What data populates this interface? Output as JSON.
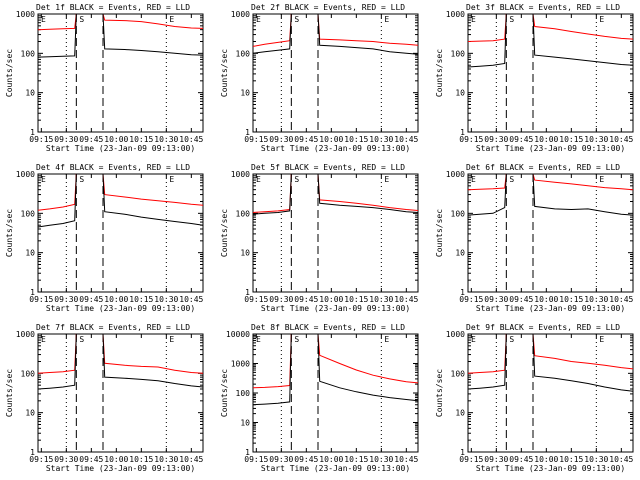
{
  "chart_data": [
    {
      "type": "line",
      "title": "Det 1f BLACK = Events, RED = LLD",
      "xlabel": "Start Time (23-Jan-09 09:13:00)",
      "ylabel": "Counts/sec",
      "xlim": [
        "09:13",
        "10:52"
      ],
      "ylim": [
        1,
        1000
      ],
      "yscale": "log",
      "x_ticks": [
        "09:15",
        "09:30",
        "09:45",
        "10:00",
        "10:15",
        "10:30",
        "10:45"
      ],
      "y_ticks": [
        "1",
        "10",
        "100",
        "1000"
      ],
      "event_labels": [
        "E",
        "S",
        "E"
      ],
      "event_lines": {
        "dotted": [
          "09:30",
          "10:30"
        ],
        "dashed": [
          "09:36",
          "09:52"
        ]
      },
      "series": [
        {
          "color": "#000000",
          "x": [
            "09:13",
            "09:20",
            "09:28",
            "09:35",
            "09:36",
            "09:52",
            "09:53",
            "10:05",
            "10:15",
            "10:25",
            "10:35",
            "10:45",
            "10:52"
          ],
          "y": [
            80,
            82,
            84,
            86,
            1000,
            1000,
            130,
            125,
            118,
            110,
            100,
            92,
            90
          ]
        },
        {
          "color": "#ff0000",
          "x": [
            "09:13",
            "09:20",
            "09:28",
            "09:35",
            "09:36",
            "09:52",
            "09:53",
            "10:05",
            "10:15",
            "10:25",
            "10:35",
            "10:45",
            "10:52"
          ],
          "y": [
            400,
            410,
            420,
            430,
            1000,
            1000,
            700,
            680,
            640,
            560,
            480,
            440,
            430
          ]
        }
      ]
    },
    {
      "type": "line",
      "title": "Det 2f BLACK = Events, RED = LLD",
      "xlabel": "Start Time (23-Jan-09 09:13:00)",
      "ylabel": "Counts/sec",
      "xlim": [
        "09:13",
        "10:52"
      ],
      "ylim": [
        1,
        1000
      ],
      "yscale": "log",
      "x_ticks": [
        "09:15",
        "09:30",
        "09:45",
        "10:00",
        "10:15",
        "10:30",
        "10:45"
      ],
      "y_ticks": [
        "1",
        "10",
        "100",
        "1000"
      ],
      "event_labels": [
        "E",
        "S",
        "E"
      ],
      "event_lines": {
        "dotted": [
          "09:30",
          "10:30"
        ],
        "dashed": [
          "09:36",
          "09:52"
        ]
      },
      "series": [
        {
          "color": "#000000",
          "x": [
            "09:13",
            "09:20",
            "09:28",
            "09:35",
            "09:36",
            "09:52",
            "09:53",
            "10:05",
            "10:15",
            "10:25",
            "10:35",
            "10:45",
            "10:52"
          ],
          "y": [
            100,
            110,
            120,
            130,
            1000,
            1000,
            160,
            150,
            140,
            130,
            110,
            100,
            95
          ]
        },
        {
          "color": "#ff0000",
          "x": [
            "09:13",
            "09:20",
            "09:28",
            "09:35",
            "09:36",
            "09:52",
            "09:53",
            "10:05",
            "10:15",
            "10:25",
            "10:35",
            "10:45",
            "10:52"
          ],
          "y": [
            150,
            170,
            190,
            210,
            1000,
            1000,
            230,
            220,
            210,
            200,
            180,
            170,
            160
          ]
        }
      ]
    },
    {
      "type": "line",
      "title": "Det 3f BLACK = Events, RED = LLD",
      "xlabel": "Start Time (23-Jan-09 09:13:00)",
      "ylabel": "Counts/sec",
      "xlim": [
        "09:13",
        "10:52"
      ],
      "ylim": [
        1,
        1000
      ],
      "yscale": "log",
      "x_ticks": [
        "09:15",
        "09:30",
        "09:45",
        "10:00",
        "10:15",
        "10:30",
        "10:45"
      ],
      "y_ticks": [
        "1",
        "10",
        "100",
        "1000"
      ],
      "event_labels": [
        "E",
        "S",
        "E"
      ],
      "event_lines": {
        "dotted": [
          "09:30",
          "10:30"
        ],
        "dashed": [
          "09:36",
          "09:52"
        ]
      },
      "series": [
        {
          "color": "#000000",
          "x": [
            "09:13",
            "09:20",
            "09:28",
            "09:35",
            "09:36",
            "09:52",
            "09:53",
            "10:05",
            "10:15",
            "10:25",
            "10:35",
            "10:45",
            "10:52"
          ],
          "y": [
            45,
            47,
            50,
            55,
            1000,
            1000,
            90,
            80,
            72,
            65,
            58,
            52,
            50
          ]
        },
        {
          "color": "#ff0000",
          "x": [
            "09:13",
            "09:20",
            "09:28",
            "09:35",
            "09:36",
            "09:52",
            "09:53",
            "10:05",
            "10:15",
            "10:25",
            "10:35",
            "10:45",
            "10:52"
          ],
          "y": [
            200,
            205,
            210,
            230,
            1000,
            1000,
            480,
            420,
            360,
            310,
            270,
            240,
            230
          ]
        }
      ]
    },
    {
      "type": "line",
      "title": "Det 4f BLACK = Events, RED = LLD",
      "xlabel": "Start Time (23-Jan-09 09:13:00)",
      "ylabel": "Counts/sec",
      "xlim": [
        "09:13",
        "10:52"
      ],
      "ylim": [
        1,
        1000
      ],
      "yscale": "log",
      "x_ticks": [
        "09:15",
        "09:30",
        "09:45",
        "10:00",
        "10:15",
        "10:30",
        "10:45"
      ],
      "y_ticks": [
        "1",
        "10",
        "100",
        "1000"
      ],
      "event_labels": [
        "E",
        "S",
        "E"
      ],
      "event_lines": {
        "dotted": [
          "09:30",
          "10:30"
        ],
        "dashed": [
          "09:36",
          "09:52"
        ]
      },
      "series": [
        {
          "color": "#000000",
          "x": [
            "09:13",
            "09:20",
            "09:28",
            "09:35",
            "09:36",
            "09:52",
            "09:53",
            "10:05",
            "10:15",
            "10:25",
            "10:35",
            "10:45",
            "10:52"
          ],
          "y": [
            45,
            50,
            55,
            65,
            1000,
            1000,
            110,
            95,
            80,
            70,
            62,
            55,
            50
          ]
        },
        {
          "color": "#ff0000",
          "x": [
            "09:13",
            "09:20",
            "09:28",
            "09:35",
            "09:36",
            "09:52",
            "09:53",
            "10:05",
            "10:15",
            "10:25",
            "10:35",
            "10:45",
            "10:52"
          ],
          "y": [
            120,
            130,
            145,
            170,
            1000,
            1000,
            300,
            260,
            230,
            210,
            190,
            170,
            160
          ]
        }
      ]
    },
    {
      "type": "line",
      "title": "Det 5f BLACK = Events, RED = LLD",
      "xlabel": "Start Time (23-Jan-09 09:13:00)",
      "ylabel": "Counts/sec",
      "xlim": [
        "09:13",
        "10:52"
      ],
      "ylim": [
        1,
        1000
      ],
      "yscale": "log",
      "x_ticks": [
        "09:15",
        "09:30",
        "09:45",
        "10:00",
        "10:15",
        "10:30",
        "10:45"
      ],
      "y_ticks": [
        "1",
        "10",
        "100",
        "1000"
      ],
      "event_labels": [
        "E",
        "S",
        "E"
      ],
      "event_lines": {
        "dotted": [
          "09:30",
          "10:30"
        ],
        "dashed": [
          "09:36",
          "09:52"
        ]
      },
      "series": [
        {
          "color": "#000000",
          "x": [
            "09:13",
            "09:20",
            "09:28",
            "09:35",
            "09:36",
            "09:52",
            "09:53",
            "10:05",
            "10:15",
            "10:25",
            "10:35",
            "10:45",
            "10:52"
          ],
          "y": [
            95,
            100,
            105,
            115,
            1000,
            1000,
            180,
            160,
            150,
            140,
            125,
            110,
            105
          ]
        },
        {
          "color": "#ff0000",
          "x": [
            "09:13",
            "09:20",
            "09:28",
            "09:35",
            "09:36",
            "09:52",
            "09:53",
            "10:05",
            "10:15",
            "10:25",
            "10:35",
            "10:45",
            "10:52"
          ],
          "y": [
            105,
            110,
            115,
            125,
            1000,
            1000,
            220,
            200,
            180,
            160,
            140,
            125,
            118
          ]
        }
      ]
    },
    {
      "type": "line",
      "title": "Det 6f BLACK = Events, RED = LLD",
      "xlabel": "Start Time (23-Jan-09 09:13:00)",
      "ylabel": "Counts/sec",
      "xlim": [
        "09:13",
        "10:52"
      ],
      "ylim": [
        1,
        1000
      ],
      "yscale": "log",
      "x_ticks": [
        "09:15",
        "09:30",
        "09:45",
        "10:00",
        "10:15",
        "10:30",
        "10:45"
      ],
      "y_ticks": [
        "1",
        "10",
        "100",
        "1000"
      ],
      "event_labels": [
        "E",
        "S",
        "E"
      ],
      "event_lines": {
        "dotted": [
          "09:30",
          "10:30"
        ],
        "dashed": [
          "09:36",
          "09:52"
        ]
      },
      "series": [
        {
          "color": "#000000",
          "x": [
            "09:13",
            "09:20",
            "09:28",
            "09:35",
            "09:36",
            "09:52",
            "09:53",
            "10:05",
            "10:15",
            "10:25",
            "10:35",
            "10:45",
            "10:52"
          ],
          "y": [
            90,
            95,
            100,
            140,
            1000,
            1000,
            150,
            130,
            125,
            130,
            110,
            95,
            90
          ]
        },
        {
          "color": "#ff0000",
          "x": [
            "09:13",
            "09:20",
            "09:28",
            "09:35",
            "09:36",
            "09:52",
            "09:53",
            "10:05",
            "10:15",
            "10:25",
            "10:35",
            "10:45",
            "10:52"
          ],
          "y": [
            400,
            410,
            420,
            440,
            1000,
            1000,
            700,
            620,
            560,
            500,
            450,
            420,
            400
          ]
        }
      ]
    },
    {
      "type": "line",
      "title": "Det 7f BLACK = Events, RED = LLD",
      "xlabel": "Start Time (23-Jan-09 09:13:00)",
      "ylabel": "Counts/sec",
      "xlim": [
        "09:13",
        "10:52"
      ],
      "ylim": [
        1,
        1000
      ],
      "yscale": "log",
      "x_ticks": [
        "09:15",
        "09:30",
        "09:45",
        "10:00",
        "10:15",
        "10:30",
        "10:45"
      ],
      "y_ticks": [
        "1",
        "10",
        "100",
        "1000"
      ],
      "event_labels": [
        "E",
        "S",
        "E"
      ],
      "event_lines": {
        "dotted": [
          "09:30",
          "10:30"
        ],
        "dashed": [
          "09:36",
          "09:52"
        ]
      },
      "series": [
        {
          "color": "#000000",
          "x": [
            "09:13",
            "09:20",
            "09:28",
            "09:35",
            "09:36",
            "09:52",
            "09:53",
            "10:05",
            "10:15",
            "10:25",
            "10:35",
            "10:45",
            "10:52"
          ],
          "y": [
            40,
            42,
            45,
            50,
            1000,
            1000,
            80,
            75,
            70,
            65,
            55,
            48,
            45
          ]
        },
        {
          "color": "#ff0000",
          "x": [
            "09:13",
            "09:20",
            "09:28",
            "09:35",
            "09:36",
            "09:52",
            "09:53",
            "10:05",
            "10:15",
            "10:25",
            "10:35",
            "10:45",
            "10:52"
          ],
          "y": [
            100,
            105,
            110,
            120,
            1000,
            1000,
            180,
            160,
            150,
            145,
            120,
            105,
            100
          ]
        }
      ]
    },
    {
      "type": "line",
      "title": "Det 8f BLACK = Events, RED = LLD",
      "xlabel": "Start Time (23-Jan-09 09:13:00)",
      "ylabel": "Counts/sec",
      "xlim": [
        "09:13",
        "10:52"
      ],
      "ylim": [
        1,
        10000
      ],
      "yscale": "log",
      "x_ticks": [
        "09:15",
        "09:30",
        "09:45",
        "10:00",
        "10:15",
        "10:30",
        "10:45"
      ],
      "y_ticks": [
        "1",
        "10",
        "100",
        "1000",
        "10000"
      ],
      "event_labels": [
        "E",
        "S",
        "E"
      ],
      "event_lines": {
        "dotted": [
          "09:30",
          "10:30"
        ],
        "dashed": [
          "09:36",
          "09:52"
        ]
      },
      "series": [
        {
          "color": "#000000",
          "x": [
            "09:13",
            "09:20",
            "09:28",
            "09:35",
            "09:36",
            "09:52",
            "09:53",
            "10:05",
            "10:15",
            "10:25",
            "10:35",
            "10:45",
            "10:52"
          ],
          "y": [
            40,
            42,
            45,
            50,
            10000,
            10000,
            250,
            150,
            110,
            85,
            70,
            60,
            55
          ]
        },
        {
          "color": "#ff0000",
          "x": [
            "09:13",
            "09:20",
            "09:28",
            "09:35",
            "09:36",
            "09:52",
            "09:53",
            "10:05",
            "10:15",
            "10:25",
            "10:35",
            "10:45",
            "10:52"
          ],
          "y": [
            150,
            155,
            165,
            180,
            10000,
            10000,
            1900,
            1000,
            600,
            400,
            300,
            240,
            220
          ]
        }
      ]
    },
    {
      "type": "line",
      "title": "Det 9f BLACK = Events, RED = LLD",
      "xlabel": "Start Time (23-Jan-09 09:13:00)",
      "ylabel": "Counts/sec",
      "xlim": [
        "09:13",
        "10:52"
      ],
      "ylim": [
        1,
        1000
      ],
      "yscale": "log",
      "x_ticks": [
        "09:15",
        "09:30",
        "09:45",
        "10:00",
        "10:15",
        "10:30",
        "10:45"
      ],
      "y_ticks": [
        "1",
        "10",
        "100",
        "1000"
      ],
      "event_labels": [
        "E",
        "S",
        "E"
      ],
      "event_lines": {
        "dotted": [
          "09:30",
          "10:30"
        ],
        "dashed": [
          "09:36",
          "09:52"
        ]
      },
      "series": [
        {
          "color": "#000000",
          "x": [
            "09:13",
            "09:20",
            "09:28",
            "09:35",
            "09:36",
            "09:52",
            "09:53",
            "10:05",
            "10:15",
            "10:25",
            "10:35",
            "10:45",
            "10:52"
          ],
          "y": [
            40,
            42,
            45,
            50,
            1000,
            1000,
            85,
            75,
            65,
            55,
            45,
            38,
            35
          ]
        },
        {
          "color": "#ff0000",
          "x": [
            "09:13",
            "09:20",
            "09:28",
            "09:35",
            "09:36",
            "09:52",
            "09:53",
            "10:05",
            "10:15",
            "10:25",
            "10:35",
            "10:45",
            "10:52"
          ],
          "y": [
            100,
            105,
            110,
            120,
            1000,
            1000,
            280,
            240,
            200,
            180,
            160,
            140,
            130
          ]
        }
      ]
    }
  ]
}
